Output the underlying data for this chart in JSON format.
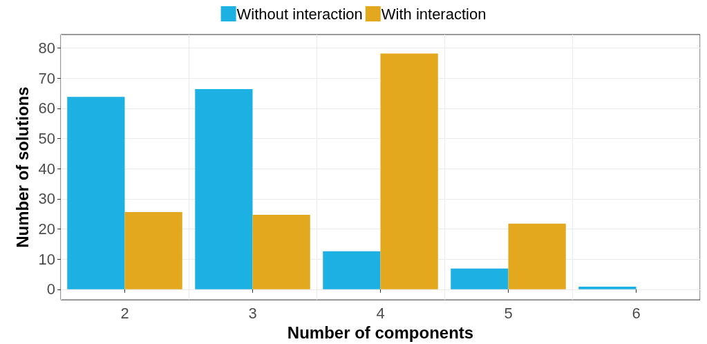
{
  "chart_data": {
    "type": "bar",
    "xlabel": "Number of components",
    "ylabel": "Number of solutions",
    "categories": [
      "2",
      "3",
      "4",
      "5",
      "6"
    ],
    "series": [
      {
        "name": "Without interaction",
        "color": "#1cb0e3",
        "values": [
          63.8,
          66.4,
          12.6,
          6.9,
          0.9
        ]
      },
      {
        "name": "With interaction",
        "color": "#e3a81e",
        "values": [
          25.6,
          24.7,
          78.2,
          21.8,
          0
        ]
      }
    ],
    "ylim": [
      -3.5,
      84.5
    ],
    "yticks": [
      0,
      10,
      20,
      30,
      40,
      50,
      60,
      70,
      80
    ],
    "grid": true,
    "legend": "top"
  }
}
